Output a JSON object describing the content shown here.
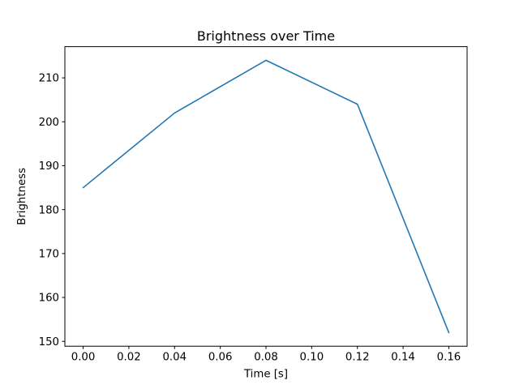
{
  "window": {
    "background": "#ffffff"
  },
  "chart_data": {
    "type": "line",
    "title": "Brightness over Time",
    "xlabel": "Time [s]",
    "ylabel": "Brightness",
    "x": [
      0.0,
      0.04,
      0.08,
      0.12,
      0.16
    ],
    "y": [
      185,
      202,
      214,
      204,
      152
    ],
    "series": [
      {
        "name": "brightness",
        "x": [
          0.0,
          0.04,
          0.08,
          0.12,
          0.16
        ],
        "values": [
          185,
          202,
          214,
          204,
          152
        ]
      }
    ],
    "xticks": [
      0.0,
      0.02,
      0.04,
      0.06,
      0.08,
      0.1,
      0.12,
      0.14,
      0.16
    ],
    "xtick_labels": [
      "0.00",
      "0.02",
      "0.04",
      "0.06",
      "0.08",
      "0.10",
      "0.12",
      "0.14",
      "0.16"
    ],
    "yticks": [
      150,
      160,
      170,
      180,
      190,
      200,
      210
    ],
    "ytick_labels": [
      "150",
      "160",
      "170",
      "180",
      "190",
      "200",
      "210"
    ],
    "xlim": [
      -0.008,
      0.168
    ],
    "ylim": [
      148.9,
      217.1
    ],
    "line_color": "#1f77b4",
    "line_width": 1.6,
    "axis_color": "#000000",
    "background": "#ffffff",
    "grid": false,
    "legend": "none"
  }
}
